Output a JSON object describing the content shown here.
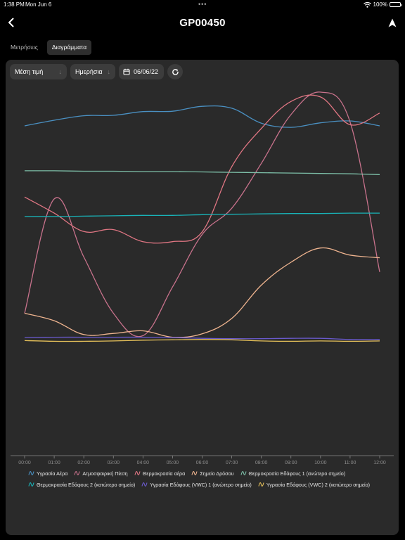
{
  "status_bar": {
    "time": "1:38 PM",
    "date": "Mon Jun 6",
    "battery": "100%"
  },
  "nav": {
    "title": "GP00450",
    "back_icon": "chevron-left-icon",
    "location_icon": "navigation-arrow-icon"
  },
  "tabs": [
    {
      "label": "Μετρήσεις",
      "active": false
    },
    {
      "label": "Διαγράμματα",
      "active": true
    }
  ],
  "toolbar": {
    "aggregate": "Μέση τιμή",
    "period": "Ημερήσια",
    "date": "06/06/22",
    "calendar_icon": "calendar-icon",
    "refresh_icon": "refresh-icon"
  },
  "chart_data": {
    "type": "line",
    "x": [
      "00:00",
      "01:00",
      "02:00",
      "03:00",
      "04:00",
      "05:00",
      "06:00",
      "07:00",
      "08:00",
      "09:00",
      "10:00",
      "11:00",
      "12:00"
    ],
    "ylim": [
      0,
      100
    ],
    "grid": false,
    "legend_position": "bottom",
    "series": [
      {
        "name": "Υγρασία Αέρα",
        "color": "#4a90c2",
        "values": [
          88,
          89.5,
          90.7,
          90.8,
          91.8,
          91.9,
          93.2,
          92.7,
          88.7,
          87.6,
          88.8,
          89.3,
          88.0
        ]
      },
      {
        "name": "Ατμοσφαιρική Πίεση",
        "color": "#c8728c",
        "values": [
          38,
          68.5,
          53,
          38,
          32,
          45,
          59,
          66,
          78,
          91,
          97,
          89,
          49
        ]
      },
      {
        "name": "Θερμοκρασία αέρα",
        "color": "#e07683",
        "values": [
          69,
          64.7,
          59.8,
          60.3,
          57.1,
          57.1,
          59.7,
          77.1,
          87.3,
          94.5,
          95.7,
          88.3,
          91.4
        ]
      },
      {
        "name": "Σημείο Δρόσου",
        "color": "#efb48f",
        "values": [
          38,
          36,
          32.3,
          32.6,
          33.3,
          31.6,
          32.5,
          36.6,
          45.5,
          51.6,
          55.4,
          53.5,
          52.8
        ]
      },
      {
        "name": "Θερμοκρασία Εδάφους 1 (ανώτερο σημείο)",
        "color": "#7dbfa8",
        "values": [
          76.0,
          76.0,
          75.9,
          75.9,
          75.8,
          75.8,
          75.7,
          75.6,
          75.5,
          75.4,
          75.3,
          75.2,
          75.0
        ]
      },
      {
        "name": "Θερμοκρασία Εδάφους 2 (κατώτερο σημείο)",
        "color": "#19b3b8",
        "values": [
          63.8,
          63.8,
          63.9,
          64.0,
          64.1,
          64.1,
          64.3,
          64.4,
          64.5,
          64.6,
          64.6,
          64.7,
          64.7
        ]
      },
      {
        "name": "Υγρασία Εδάφους (VWC) 1 (ανώτερο σημείο)",
        "color": "#6a5acd",
        "values": [
          31.5,
          31.6,
          31.6,
          31.6,
          31.6,
          31.5,
          31.3,
          31.2,
          31.2,
          31.3,
          31.3,
          31.0,
          31.0
        ]
      },
      {
        "name": "Υγρασία Εδάφους (VWC) 2 (κατώτερο σημείο)",
        "color": "#e6c15a",
        "values": [
          30.7,
          30.5,
          30.5,
          30.6,
          30.8,
          30.9,
          31.0,
          30.9,
          30.6,
          30.5,
          30.6,
          30.5,
          30.6
        ]
      }
    ]
  }
}
